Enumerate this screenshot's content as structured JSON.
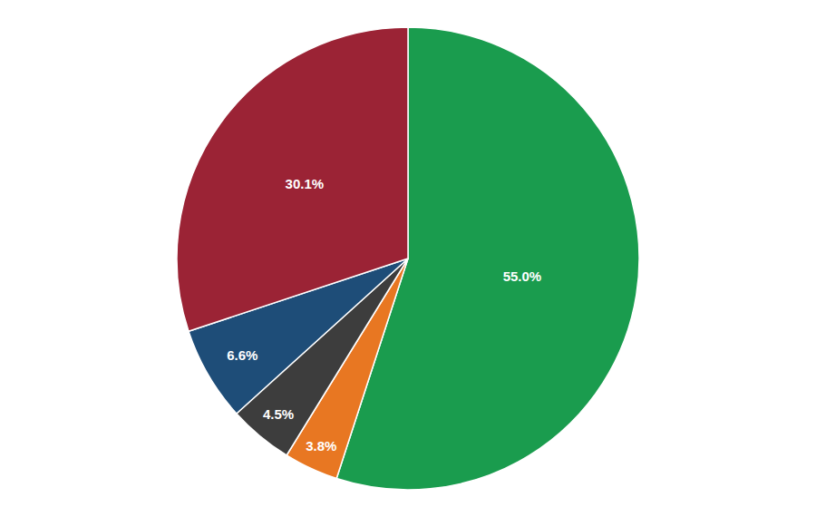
{
  "chart_data": {
    "type": "pie",
    "values": [
      55.0,
      3.8,
      4.5,
      6.6,
      30.1
    ],
    "value_labels": [
      "55.0%",
      "3.8%",
      "4.5%",
      "6.6%",
      "30.1%"
    ],
    "colors": [
      "#1a9c4e",
      "#e87722",
      "#3d3d3d",
      "#1e4d78",
      "#9b2335"
    ],
    "data_labels": true
  }
}
